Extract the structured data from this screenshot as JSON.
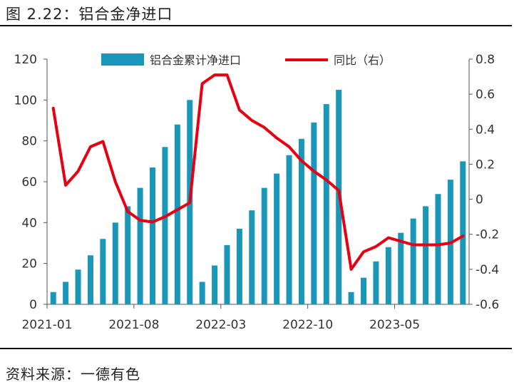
{
  "figure": {
    "title": "图 2.22：铝合金净进口",
    "source": "资料来源：一德有色"
  },
  "colors": {
    "bar": "#1a96b8",
    "line": "#e60012",
    "axis": "#555555"
  },
  "chart_data": {
    "type": "bar+line",
    "x_tick_labels": [
      "2021-01",
      "2021-08",
      "2022-03",
      "2022-10",
      "2023-05"
    ],
    "x_tick_indices": [
      0,
      7,
      14,
      21,
      28
    ],
    "categories_count": 34,
    "series": [
      {
        "name": "铝合金累计净进口",
        "type": "bar",
        "axis": "left",
        "values": [
          6,
          11,
          17,
          24,
          32,
          40,
          48,
          57,
          67,
          77,
          88,
          100,
          11,
          19,
          29,
          37,
          46,
          57,
          64,
          73,
          81,
          89,
          98,
          105,
          6,
          13,
          21,
          28,
          35,
          42,
          48,
          54,
          61,
          70
        ]
      },
      {
        "name": "同比（右）",
        "type": "line",
        "axis": "right",
        "values": [
          0.52,
          0.08,
          0.16,
          0.3,
          0.33,
          0.1,
          -0.07,
          -0.12,
          -0.13,
          -0.1,
          -0.06,
          -0.02,
          0.66,
          0.71,
          0.71,
          0.51,
          0.45,
          0.41,
          0.35,
          0.3,
          0.22,
          0.16,
          0.11,
          0.05,
          -0.4,
          -0.3,
          -0.27,
          -0.22,
          -0.24,
          -0.26,
          -0.26,
          -0.26,
          -0.25,
          -0.21
        ]
      }
    ],
    "y_left": {
      "min": 0,
      "max": 120,
      "ticks": [
        0,
        20,
        40,
        60,
        80,
        100,
        120
      ]
    },
    "y_right": {
      "min": -0.6,
      "max": 0.8,
      "ticks": [
        "-0.6",
        "-0.4",
        "-0.2",
        "0",
        "0.2",
        "0.4",
        "0.6",
        "0.8"
      ]
    },
    "legend": {
      "placement": "top-center",
      "bar_label": "铝合金累计净进口",
      "line_label": "同比（右）"
    },
    "grid": false
  }
}
